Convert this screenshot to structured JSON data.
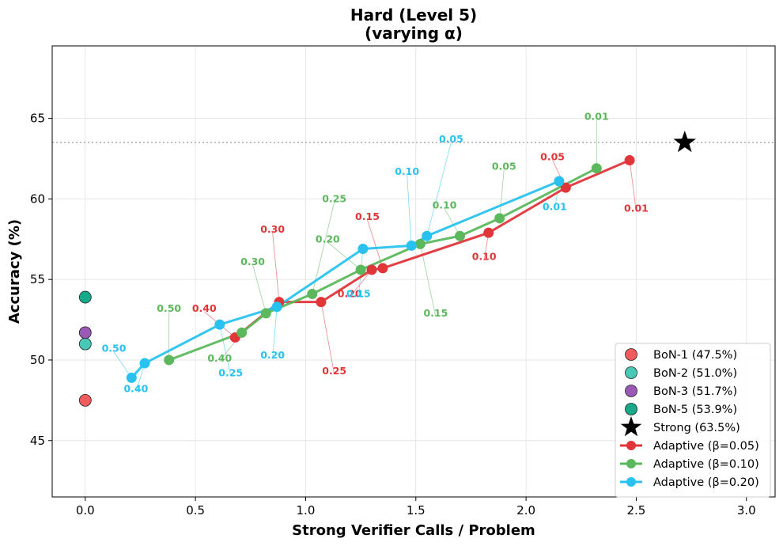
{
  "chart_data": {
    "type": "scatter",
    "title": "Hard (Level 5)",
    "subtitle": "(varying α)",
    "xlabel": "Strong Verifier Calls / Problem",
    "ylabel": "Accuracy (%)",
    "xlim": [
      -0.15,
      3.13
    ],
    "ylim": [
      41.5,
      69.5
    ],
    "xticks": [
      0.0,
      0.5,
      1.0,
      1.5,
      2.0,
      2.5,
      3.0
    ],
    "xtick_labels": [
      "0.0",
      "0.5",
      "1.0",
      "1.5",
      "2.0",
      "2.5",
      "3.0"
    ],
    "yticks": [
      45,
      50,
      55,
      60,
      65
    ],
    "ytick_labels": [
      "45",
      "50",
      "55",
      "60",
      "65"
    ],
    "grid": true,
    "legend_position": "bottom-right",
    "reference_line": {
      "y": 63.5,
      "style": "dotted",
      "color": "#aaaaaa"
    },
    "baselines": [
      {
        "name": "BoN-1 (47.5%)",
        "x": 0.0,
        "y": 47.5,
        "color": "#f05c5c"
      },
      {
        "name": "BoN-2 (51.0%)",
        "x": 0.0,
        "y": 51.0,
        "color": "#48c9b8"
      },
      {
        "name": "BoN-3 (51.7%)",
        "x": 0.0,
        "y": 51.7,
        "color": "#9b59b6"
      },
      {
        "name": "BoN-5 (53.9%)",
        "x": 0.0,
        "y": 53.9,
        "color": "#16a98a"
      }
    ],
    "strong": {
      "name": "Strong (63.5%)",
      "x": 2.72,
      "y": 63.5,
      "color": "#000000"
    },
    "series": [
      {
        "name": "Adaptive (β=0.05)",
        "color": "#e0363a",
        "points": [
          {
            "x": 0.68,
            "y": 51.4,
            "label": "0.40",
            "lx": 0.54,
            "ly": 53.2
          },
          {
            "x": 0.88,
            "y": 53.6,
            "label": "0.30",
            "lx": 0.85,
            "ly": 58.1
          },
          {
            "x": 1.07,
            "y": 53.6,
            "label": "0.25",
            "lx": 1.13,
            "ly": 49.3
          },
          {
            "x": 1.3,
            "y": 55.6,
            "label": "0.20",
            "lx": 1.2,
            "ly": 54.1
          },
          {
            "x": 1.35,
            "y": 55.7,
            "label": "0.15",
            "lx": 1.28,
            "ly": 58.9
          },
          {
            "x": 1.83,
            "y": 57.9,
            "label": "0.10",
            "lx": 1.81,
            "ly": 56.4
          },
          {
            "x": 2.18,
            "y": 60.7,
            "label": "0.05",
            "lx": 2.12,
            "ly": 62.6
          },
          {
            "x": 2.47,
            "y": 62.4,
            "label": "0.01",
            "lx": 2.5,
            "ly": 59.4
          }
        ]
      },
      {
        "name": "Adaptive (β=0.10)",
        "color": "#5cb85c",
        "points": [
          {
            "x": 0.38,
            "y": 50.0,
            "label": "0.50",
            "lx": 0.38,
            "ly": 53.2
          },
          {
            "x": 0.71,
            "y": 51.7,
            "label": "0.40",
            "lx": 0.61,
            "ly": 50.1
          },
          {
            "x": 0.82,
            "y": 52.9,
            "label": "0.30",
            "lx": 0.76,
            "ly": 56.1
          },
          {
            "x": 1.03,
            "y": 54.1,
            "label": "0.25",
            "lx": 1.13,
            "ly": 60.0
          },
          {
            "x": 1.25,
            "y": 55.6,
            "label": "0.20",
            "lx": 1.1,
            "ly": 57.5
          },
          {
            "x": 1.52,
            "y": 57.2,
            "label": "0.15",
            "lx": 1.59,
            "ly": 52.9
          },
          {
            "x": 1.7,
            "y": 57.7,
            "label": "0.10",
            "lx": 1.63,
            "ly": 59.6
          },
          {
            "x": 1.88,
            "y": 58.8,
            "label": "0.05",
            "lx": 1.9,
            "ly": 62.0
          },
          {
            "x": 2.32,
            "y": 61.9,
            "label": "0.01",
            "lx": 2.32,
            "ly": 65.1
          }
        ]
      },
      {
        "name": "Adaptive (β=0.20)",
        "color": "#29c2f0",
        "points": [
          {
            "x": 0.21,
            "y": 48.9,
            "label": "0.50",
            "lx": 0.13,
            "ly": 50.7
          },
          {
            "x": 0.27,
            "y": 49.8,
            "label": "0.40",
            "lx": 0.23,
            "ly": 48.2
          },
          {
            "x": 0.61,
            "y": 52.2,
            "label": "0.25",
            "lx": 0.66,
            "ly": 49.2
          },
          {
            "x": 0.87,
            "y": 53.3,
            "label": "0.20",
            "lx": 0.85,
            "ly": 50.3
          },
          {
            "x": 1.26,
            "y": 56.9,
            "label": "0.15",
            "lx": 1.24,
            "ly": 54.1
          },
          {
            "x": 1.48,
            "y": 57.1,
            "label": "0.10",
            "lx": 1.46,
            "ly": 61.7
          },
          {
            "x": 1.55,
            "y": 57.7,
            "label": "0.05",
            "lx": 1.66,
            "ly": 63.7
          },
          {
            "x": 2.15,
            "y": 61.1,
            "label": "0.01",
            "lx": 2.13,
            "ly": 59.5
          }
        ]
      }
    ]
  }
}
